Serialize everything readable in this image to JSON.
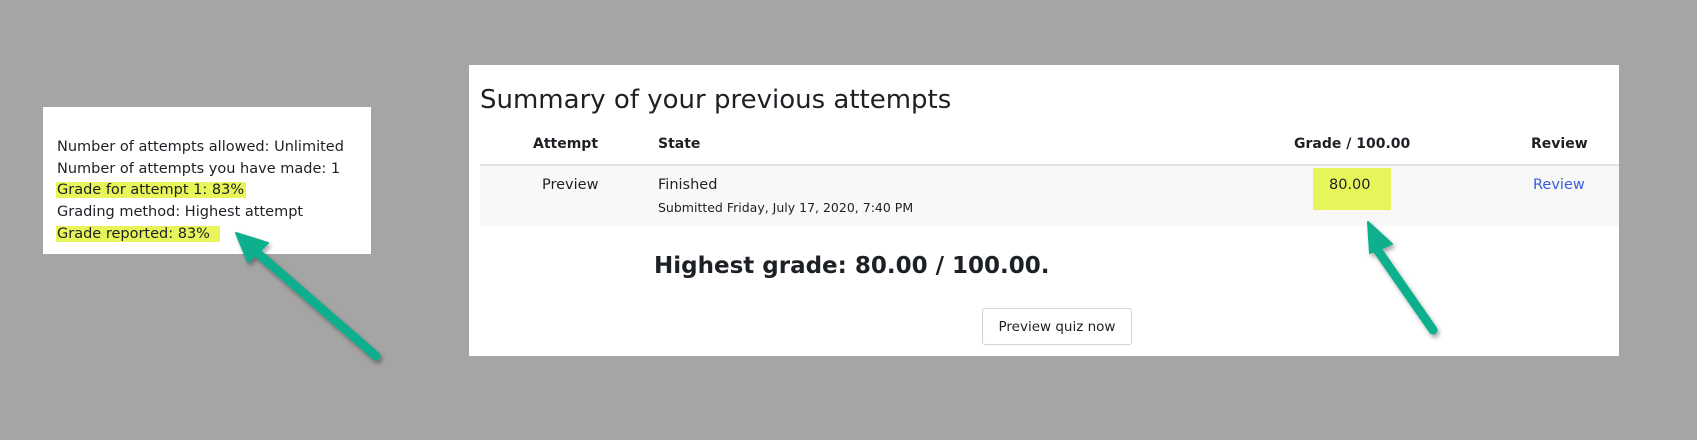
{
  "info_box": {
    "lines": [
      {
        "text": "Number of attempts allowed: Unlimited",
        "highlighted": false
      },
      {
        "text": "Number of attempts you have made: 1",
        "highlighted": false
      },
      {
        "text": "Grade for attempt 1: 83%",
        "highlighted": true
      },
      {
        "text": "Grading method: Highest attempt",
        "highlighted": false
      },
      {
        "text": "Grade reported: 83%",
        "highlighted": true
      }
    ]
  },
  "summary": {
    "title": "Summary of your previous attempts",
    "columns": [
      "Attempt",
      "State",
      "Grade / 100.00",
      "Review"
    ],
    "rows": [
      {
        "attempt": "Preview",
        "state": "Finished",
        "submitted": "Submitted Friday, July 17, 2020, 7:40 PM",
        "grade": "80.00",
        "review": "Review"
      }
    ],
    "highest_grade": "Highest grade: 80.00 / 100.00.",
    "preview_button": "Preview quiz now"
  },
  "colors": {
    "highlight": "#e8f55a",
    "arrow": "#0aaf8d",
    "link": "#3a5bd9",
    "background": "#a5a5a5"
  },
  "annotations": {
    "arrows": [
      "arrow-to-grade-reported",
      "arrow-to-grade-cell"
    ]
  }
}
